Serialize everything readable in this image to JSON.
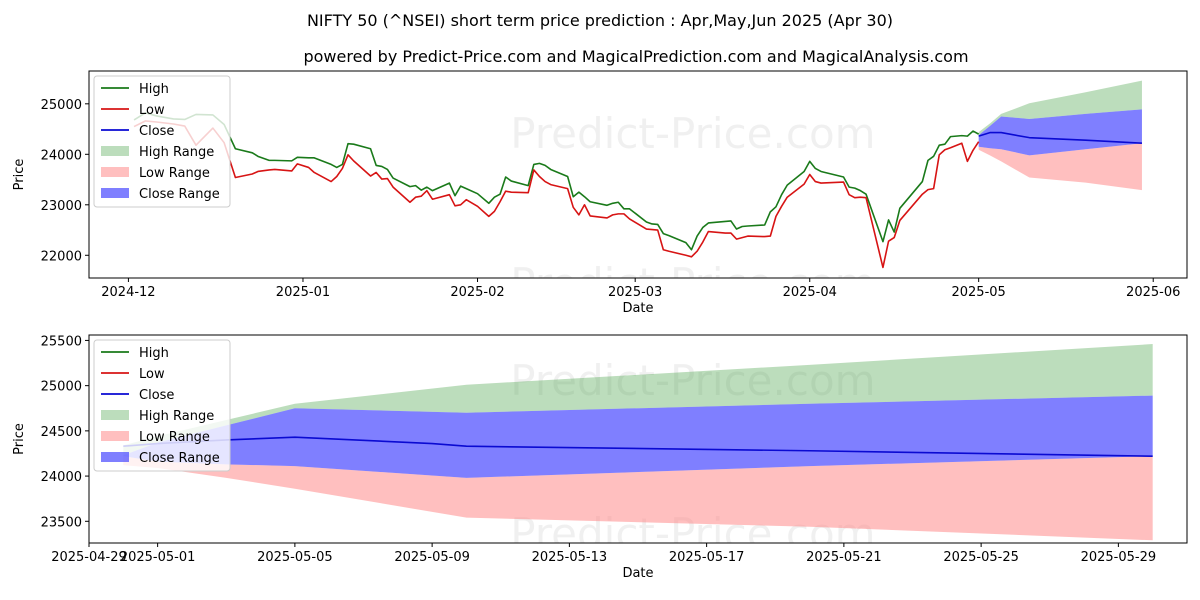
{
  "title": "NIFTY 50 (^NSEI) short term price prediction : Apr,May,Jun 2025 (Apr 30)",
  "subtitle": "powered by Predict-Price.com and MagicalPrediction.com and MagicalAnalysis.com",
  "watermark": "Predict-Price.com",
  "colors": {
    "high": "#1a7a1a",
    "low": "#d71414",
    "close": "#0a0ad2",
    "high_range": "#3e9e3e",
    "low_range": "#ff8080",
    "close_range": "#4848ff"
  },
  "chart_data": [
    {
      "type": "line",
      "ylabel": "Price",
      "xlabel": "Date",
      "ylim": [
        21550,
        25650
      ],
      "xlim": [
        "2024-11-24",
        "2025-06-07"
      ],
      "x_ticks": [
        "2024-12",
        "2025-01",
        "2025-02",
        "2025-03",
        "2025-04",
        "2025-05",
        "2025-06"
      ],
      "y_ticks": [
        22000,
        23000,
        24000,
        25000
      ],
      "legend": [
        "High",
        "Low",
        "Close",
        "High Range",
        "Low Range",
        "Close Range"
      ],
      "legend_position": "top-left",
      "high": [
        [
          "2024-12-02",
          24680
        ],
        [
          "2024-12-04",
          24820
        ],
        [
          "2024-12-06",
          24760
        ],
        [
          "2024-12-09",
          24700
        ],
        [
          "2024-12-11",
          24690
        ],
        [
          "2024-12-13",
          24790
        ],
        [
          "2024-12-16",
          24780
        ],
        [
          "2024-12-18",
          24590
        ],
        [
          "2024-12-20",
          24110
        ],
        [
          "2024-12-23",
          24030
        ],
        [
          "2024-12-24",
          23960
        ],
        [
          "2024-12-26",
          23880
        ],
        [
          "2024-12-27",
          23880
        ],
        [
          "2024-12-30",
          23870
        ],
        [
          "2024-12-31",
          23940
        ],
        [
          "2025-01-02",
          23930
        ],
        [
          "2025-01-03",
          23930
        ],
        [
          "2025-01-06",
          23800
        ],
        [
          "2025-01-07",
          23740
        ],
        [
          "2025-01-08",
          23800
        ],
        [
          "2025-01-09",
          24210
        ],
        [
          "2025-01-10",
          24200
        ],
        [
          "2025-01-13",
          24110
        ],
        [
          "2025-01-14",
          23780
        ],
        [
          "2025-01-15",
          23760
        ],
        [
          "2025-01-16",
          23700
        ],
        [
          "2025-01-17",
          23530
        ],
        [
          "2025-01-20",
          23360
        ],
        [
          "2025-01-21",
          23380
        ],
        [
          "2025-01-22",
          23290
        ],
        [
          "2025-01-23",
          23350
        ],
        [
          "2025-01-24",
          23280
        ],
        [
          "2025-01-27",
          23430
        ],
        [
          "2025-01-28",
          23180
        ],
        [
          "2025-01-29",
          23370
        ],
        [
          "2025-01-30",
          23320
        ],
        [
          "2025-02-01",
          23220
        ],
        [
          "2025-02-03",
          23030
        ],
        [
          "2025-02-04",
          23150
        ],
        [
          "2025-02-05",
          23210
        ],
        [
          "2025-02-06",
          23550
        ],
        [
          "2025-02-07",
          23470
        ],
        [
          "2025-02-10",
          23380
        ],
        [
          "2025-02-11",
          23800
        ],
        [
          "2025-02-12",
          23820
        ],
        [
          "2025-02-13",
          23780
        ],
        [
          "2025-02-14",
          23700
        ],
        [
          "2025-02-17",
          23560
        ],
        [
          "2025-02-18",
          23160
        ],
        [
          "2025-02-19",
          23250
        ],
        [
          "2025-02-20",
          23160
        ],
        [
          "2025-02-21",
          23060
        ],
        [
          "2025-02-24",
          22990
        ],
        [
          "2025-02-25",
          23030
        ],
        [
          "2025-02-26",
          23050
        ],
        [
          "2025-02-27",
          22920
        ],
        [
          "2025-02-28",
          22920
        ],
        [
          "2025-03-03",
          22660
        ],
        [
          "2025-03-04",
          22620
        ],
        [
          "2025-03-05",
          22610
        ],
        [
          "2025-03-06",
          22430
        ],
        [
          "2025-03-07",
          22390
        ],
        [
          "2025-03-10",
          22250
        ],
        [
          "2025-03-11",
          22110
        ],
        [
          "2025-03-12",
          22380
        ],
        [
          "2025-03-13",
          22550
        ],
        [
          "2025-03-14",
          22640
        ],
        [
          "2025-03-17",
          22670
        ],
        [
          "2025-03-18",
          22680
        ],
        [
          "2025-03-19",
          22520
        ],
        [
          "2025-03-20",
          22570
        ],
        [
          "2025-03-21",
          22580
        ],
        [
          "2025-03-24",
          22600
        ],
        [
          "2025-03-25",
          22860
        ],
        [
          "2025-03-26",
          22960
        ],
        [
          "2025-03-27",
          23200
        ],
        [
          "2025-03-28",
          23390
        ],
        [
          "2025-03-31",
          23660
        ],
        [
          "2025-04-01",
          23860
        ],
        [
          "2025-04-02",
          23720
        ],
        [
          "2025-04-03",
          23660
        ],
        [
          "2025-04-07",
          23550
        ],
        [
          "2025-04-08",
          23350
        ],
        [
          "2025-04-09",
          23330
        ],
        [
          "2025-04-10",
          23280
        ],
        [
          "2025-04-11",
          23210
        ],
        [
          "2025-04-14",
          22270
        ],
        [
          "2025-04-15",
          22700
        ],
        [
          "2025-04-16",
          22460
        ],
        [
          "2025-04-17",
          22930
        ],
        [
          "2025-04-21",
          23460
        ],
        [
          "2025-04-22",
          23880
        ],
        [
          "2025-04-23",
          23960
        ],
        [
          "2025-04-24",
          24180
        ],
        [
          "2025-04-25",
          24200
        ],
        [
          "2025-04-26",
          24350
        ],
        [
          "2025-04-28",
          24370
        ],
        [
          "2025-04-29",
          24360
        ],
        [
          "2025-04-30",
          24460
        ],
        [
          "2025-05-01",
          24400
        ]
      ],
      "low": [
        [
          "2024-12-02",
          24550
        ],
        [
          "2024-12-04",
          24660
        ],
        [
          "2024-12-06",
          24640
        ],
        [
          "2024-12-09",
          24600
        ],
        [
          "2024-12-11",
          24560
        ],
        [
          "2024-12-13",
          24180
        ],
        [
          "2024-12-16",
          24520
        ],
        [
          "2024-12-18",
          24230
        ],
        [
          "2024-12-20",
          23540
        ],
        [
          "2024-12-23",
          23610
        ],
        [
          "2024-12-24",
          23660
        ],
        [
          "2024-12-26",
          23690
        ],
        [
          "2024-12-27",
          23700
        ],
        [
          "2024-12-30",
          23670
        ],
        [
          "2024-12-31",
          23810
        ],
        [
          "2025-01-02",
          23740
        ],
        [
          "2025-01-03",
          23640
        ],
        [
          "2025-01-06",
          23460
        ],
        [
          "2025-01-07",
          23560
        ],
        [
          "2025-01-08",
          23720
        ],
        [
          "2025-01-09",
          23990
        ],
        [
          "2025-01-10",
          23870
        ],
        [
          "2025-01-13",
          23570
        ],
        [
          "2025-01-14",
          23640
        ],
        [
          "2025-01-15",
          23510
        ],
        [
          "2025-01-16",
          23520
        ],
        [
          "2025-01-17",
          23350
        ],
        [
          "2025-01-20",
          23050
        ],
        [
          "2025-01-21",
          23150
        ],
        [
          "2025-01-22",
          23170
        ],
        [
          "2025-01-23",
          23280
        ],
        [
          "2025-01-24",
          23110
        ],
        [
          "2025-01-27",
          23200
        ],
        [
          "2025-01-28",
          22980
        ],
        [
          "2025-01-29",
          23000
        ],
        [
          "2025-01-30",
          23100
        ],
        [
          "2025-02-01",
          22970
        ],
        [
          "2025-02-03",
          22770
        ],
        [
          "2025-02-04",
          22870
        ],
        [
          "2025-02-05",
          23060
        ],
        [
          "2025-02-06",
          23270
        ],
        [
          "2025-02-07",
          23250
        ],
        [
          "2025-02-10",
          23240
        ],
        [
          "2025-02-11",
          23690
        ],
        [
          "2025-02-12",
          23560
        ],
        [
          "2025-02-13",
          23460
        ],
        [
          "2025-02-14",
          23400
        ],
        [
          "2025-02-17",
          23320
        ],
        [
          "2025-02-18",
          22950
        ],
        [
          "2025-02-19",
          22800
        ],
        [
          "2025-02-20",
          23000
        ],
        [
          "2025-02-21",
          22780
        ],
        [
          "2025-02-24",
          22740
        ],
        [
          "2025-02-25",
          22800
        ],
        [
          "2025-02-26",
          22820
        ],
        [
          "2025-02-27",
          22820
        ],
        [
          "2025-02-28",
          22720
        ],
        [
          "2025-03-03",
          22520
        ],
        [
          "2025-03-04",
          22510
        ],
        [
          "2025-03-05",
          22500
        ],
        [
          "2025-03-06",
          22110
        ],
        [
          "2025-03-07",
          22080
        ],
        [
          "2025-03-10",
          22000
        ],
        [
          "2025-03-11",
          21970
        ],
        [
          "2025-03-12",
          22080
        ],
        [
          "2025-03-13",
          22260
        ],
        [
          "2025-03-14",
          22470
        ],
        [
          "2025-03-17",
          22440
        ],
        [
          "2025-03-18",
          22440
        ],
        [
          "2025-03-19",
          22320
        ],
        [
          "2025-03-20",
          22350
        ],
        [
          "2025-03-21",
          22380
        ],
        [
          "2025-03-24",
          22370
        ],
        [
          "2025-03-25",
          22380
        ],
        [
          "2025-03-26",
          22770
        ],
        [
          "2025-03-27",
          22970
        ],
        [
          "2025-03-28",
          23150
        ],
        [
          "2025-03-31",
          23410
        ],
        [
          "2025-04-01",
          23600
        ],
        [
          "2025-04-02",
          23460
        ],
        [
          "2025-04-03",
          23430
        ],
        [
          "2025-04-07",
          23450
        ],
        [
          "2025-04-08",
          23200
        ],
        [
          "2025-04-09",
          23140
        ],
        [
          "2025-04-10",
          23150
        ],
        [
          "2025-04-11",
          23140
        ],
        [
          "2025-04-14",
          21760
        ],
        [
          "2025-04-15",
          22280
        ],
        [
          "2025-04-16",
          22350
        ],
        [
          "2025-04-17",
          22690
        ],
        [
          "2025-04-21",
          23210
        ],
        [
          "2025-04-22",
          23300
        ],
        [
          "2025-04-23",
          23320
        ],
        [
          "2025-04-24",
          23990
        ],
        [
          "2025-04-25",
          24090
        ],
        [
          "2025-04-26",
          24130
        ],
        [
          "2025-04-28",
          24220
        ],
        [
          "2025-04-29",
          23860
        ],
        [
          "2025-04-30",
          24080
        ],
        [
          "2025-05-01",
          24250
        ]
      ],
      "close": [
        [
          "2025-05-01",
          24360
        ],
        [
          "2025-05-03",
          24430
        ],
        [
          "2025-05-05",
          24430
        ],
        [
          "2025-05-10",
          24330
        ],
        [
          "2025-05-20",
          24280
        ],
        [
          "2025-05-30",
          24220
        ]
      ],
      "high_range": [
        [
          "2025-05-01",
          24440
        ],
        [
          "2025-05-03",
          24610
        ],
        [
          "2025-05-05",
          24800
        ],
        [
          "2025-05-10",
          25010
        ],
        [
          "2025-05-20",
          25230
        ],
        [
          "2025-05-30",
          25460
        ]
      ],
      "low_range": [
        [
          "2025-05-01",
          24090
        ],
        [
          "2025-05-03",
          23980
        ],
        [
          "2025-05-05",
          23860
        ],
        [
          "2025-05-10",
          23540
        ],
        [
          "2025-05-20",
          23440
        ],
        [
          "2025-05-30",
          23290
        ]
      ],
      "close_range_upper": [
        [
          "2025-05-01",
          24380
        ],
        [
          "2025-05-03",
          24560
        ],
        [
          "2025-05-05",
          24750
        ],
        [
          "2025-05-10",
          24700
        ],
        [
          "2025-05-20",
          24800
        ],
        [
          "2025-05-30",
          24890
        ]
      ],
      "close_range_lower": [
        [
          "2025-05-01",
          24150
        ],
        [
          "2025-05-03",
          24120
        ],
        [
          "2025-05-05",
          24100
        ],
        [
          "2025-05-10",
          23980
        ],
        [
          "2025-05-20",
          24100
        ],
        [
          "2025-05-30",
          24220
        ]
      ]
    },
    {
      "type": "line",
      "ylabel": "Price",
      "xlabel": "Date",
      "ylim": [
        23260,
        25560
      ],
      "xlim": [
        "2025-04-29",
        "2025-05-31"
      ],
      "x_ticks": [
        "2025-04-29",
        "2025-05-01",
        "2025-05-05",
        "2025-05-09",
        "2025-05-13",
        "2025-05-17",
        "2025-05-21",
        "2025-05-25",
        "2025-05-29"
      ],
      "y_ticks": [
        23500,
        24000,
        24500,
        25000,
        25500
      ],
      "legend": [
        "High",
        "Low",
        "Close",
        "High Range",
        "Low Range",
        "Close Range"
      ],
      "legend_position": "top-left",
      "close": [
        [
          "2025-04-30",
          24330
        ],
        [
          "2025-05-01",
          24360
        ],
        [
          "2025-05-03",
          24400
        ],
        [
          "2025-05-05",
          24430
        ],
        [
          "2025-05-09",
          24360
        ],
        [
          "2025-05-10",
          24330
        ],
        [
          "2025-05-20",
          24280
        ],
        [
          "2025-05-30",
          24220
        ]
      ],
      "high_range": [
        [
          "2025-04-30",
          24340
        ],
        [
          "2025-05-01",
          24440
        ],
        [
          "2025-05-03",
          24620
        ],
        [
          "2025-05-05",
          24800
        ],
        [
          "2025-05-10",
          25010
        ],
        [
          "2025-05-20",
          25230
        ],
        [
          "2025-05-30",
          25460
        ]
      ],
      "low_range": [
        [
          "2025-04-30",
          24120
        ],
        [
          "2025-05-01",
          24090
        ],
        [
          "2025-05-03",
          23980
        ],
        [
          "2025-05-05",
          23860
        ],
        [
          "2025-05-10",
          23540
        ],
        [
          "2025-05-20",
          23440
        ],
        [
          "2025-05-30",
          23290
        ]
      ],
      "close_range_upper": [
        [
          "2025-04-30",
          24230
        ],
        [
          "2025-05-01",
          24370
        ],
        [
          "2025-05-03",
          24560
        ],
        [
          "2025-05-05",
          24750
        ],
        [
          "2025-05-10",
          24700
        ],
        [
          "2025-05-20",
          24800
        ],
        [
          "2025-05-30",
          24890
        ]
      ],
      "close_range_lower": [
        [
          "2025-04-30",
          24220
        ],
        [
          "2025-05-01",
          24160
        ],
        [
          "2025-05-03",
          24130
        ],
        [
          "2025-05-05",
          24110
        ],
        [
          "2025-05-10",
          23980
        ],
        [
          "2025-05-20",
          24110
        ],
        [
          "2025-05-30",
          24220
        ]
      ]
    }
  ]
}
